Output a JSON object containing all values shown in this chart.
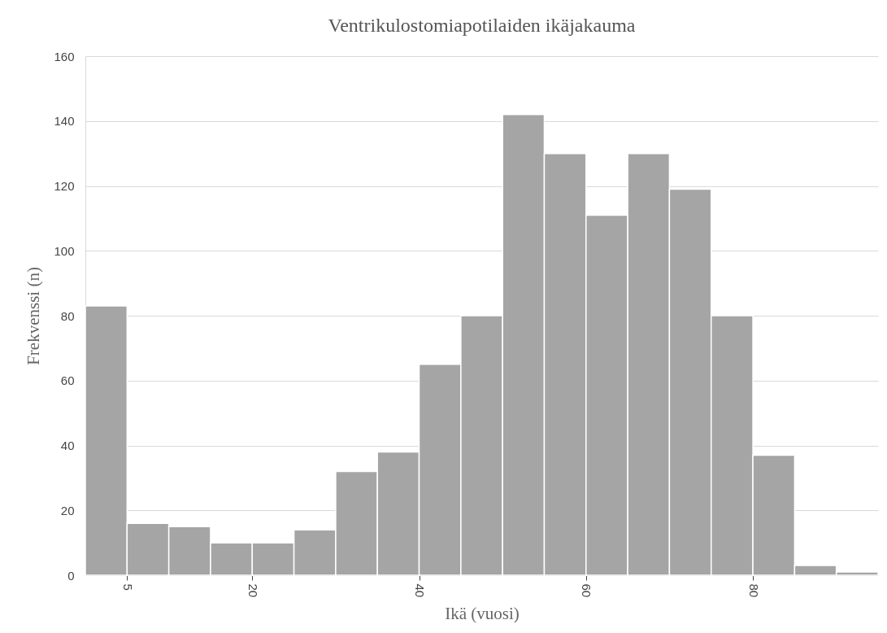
{
  "chart_data": {
    "type": "histogram",
    "title": "Ventrikulostomiapotilaiden ikäjakauma",
    "xlabel": "Ikä (vuosi)",
    "ylabel": "Frekvenssi (n)",
    "bins": [
      0,
      5,
      10,
      15,
      20,
      25,
      30,
      35,
      40,
      45,
      50,
      55,
      60,
      65,
      70,
      75,
      80,
      85,
      90,
      95
    ],
    "values": [
      83,
      16,
      15,
      10,
      10,
      14,
      32,
      38,
      65,
      80,
      142,
      130,
      111,
      130,
      119,
      80,
      37,
      3,
      1
    ],
    "color": "#a5a5a5",
    "xlim": [
      0,
      95
    ],
    "xticks": [
      5,
      20,
      40,
      60,
      80
    ],
    "ylim": [
      0,
      160
    ],
    "yticks": [
      0,
      20,
      40,
      60,
      80,
      100,
      120,
      140,
      160
    ],
    "grid": "y"
  }
}
